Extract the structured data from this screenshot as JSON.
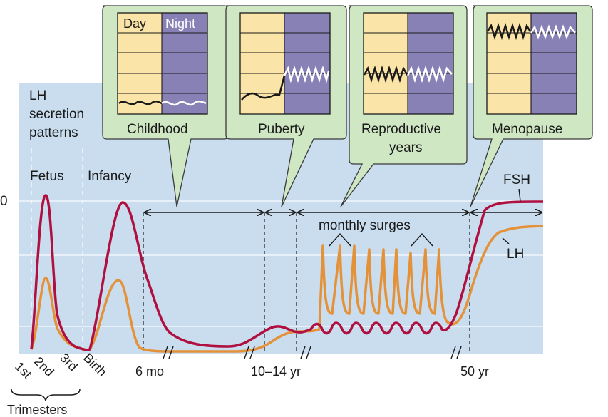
{
  "panel_title": [
    "LH",
    "secretion",
    "patterns"
  ],
  "stages": {
    "fetus": "Fetus",
    "infancy": "Infancy"
  },
  "insets": [
    {
      "label": [
        "Childhood"
      ],
      "day": "Day",
      "night": "Night",
      "pattern": "low amplitude pulses day and night"
    },
    {
      "label": [
        "Puberty"
      ],
      "pattern": "low by day, large pulses at night"
    },
    {
      "label": [
        "Reproductive",
        "years"
      ],
      "pattern": "large pulses day and night"
    },
    {
      "label": [
        "Menopause"
      ],
      "pattern": "very high pulses day and night"
    }
  ],
  "annotations": {
    "monthly_surges": "monthly surges"
  },
  "series_labels": {
    "fsh": "FSH",
    "lh": "LH"
  },
  "x_axis": {
    "trimester_ticks": [
      "1st",
      "2nd",
      "3rd",
      "Birth"
    ],
    "trimesters_label": "Trimesters",
    "ticks": [
      "6 mo",
      "10–14 yr",
      "50 yr"
    ]
  },
  "y_axis_fragment": "0",
  "colors": {
    "background_panel": "#c9ddef",
    "inset_panel": "#cfe7c3",
    "day_fill": "#fbe4a8",
    "night_fill": "#8881b6",
    "fsh_line": "#b0103f",
    "lh_line": "#e4923a"
  }
}
